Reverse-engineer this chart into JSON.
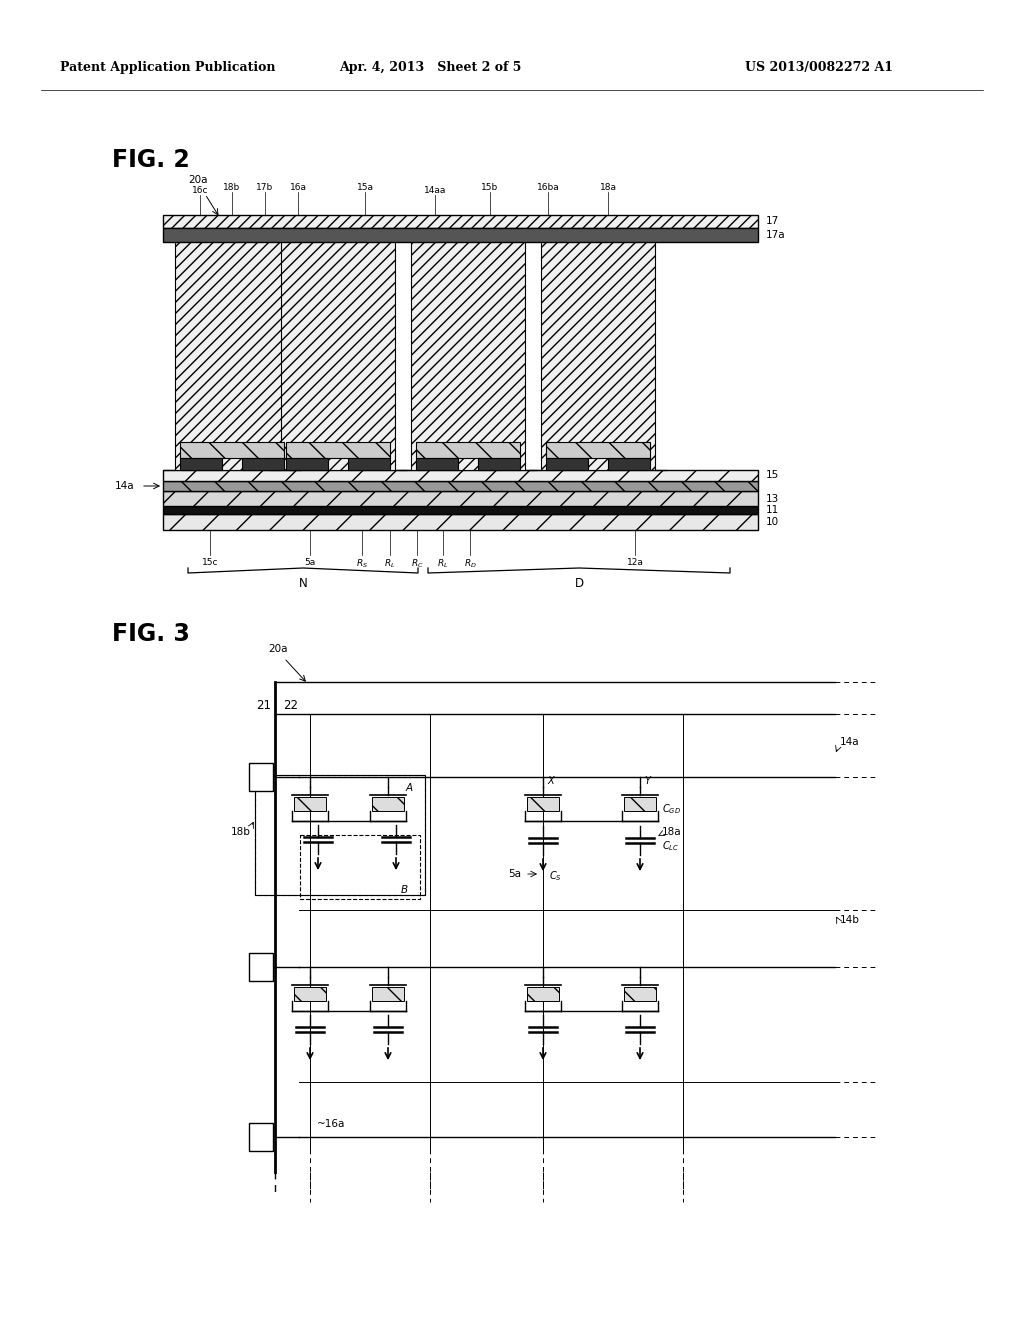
{
  "bg": "#ffffff",
  "header_left": "Patent Application Publication",
  "header_mid": "Apr. 4, 2013   Sheet 2 of 5",
  "header_right": "US 2013/0082272 A1",
  "fig2_title": "FIG. 2",
  "fig3_title": "FIG. 3"
}
